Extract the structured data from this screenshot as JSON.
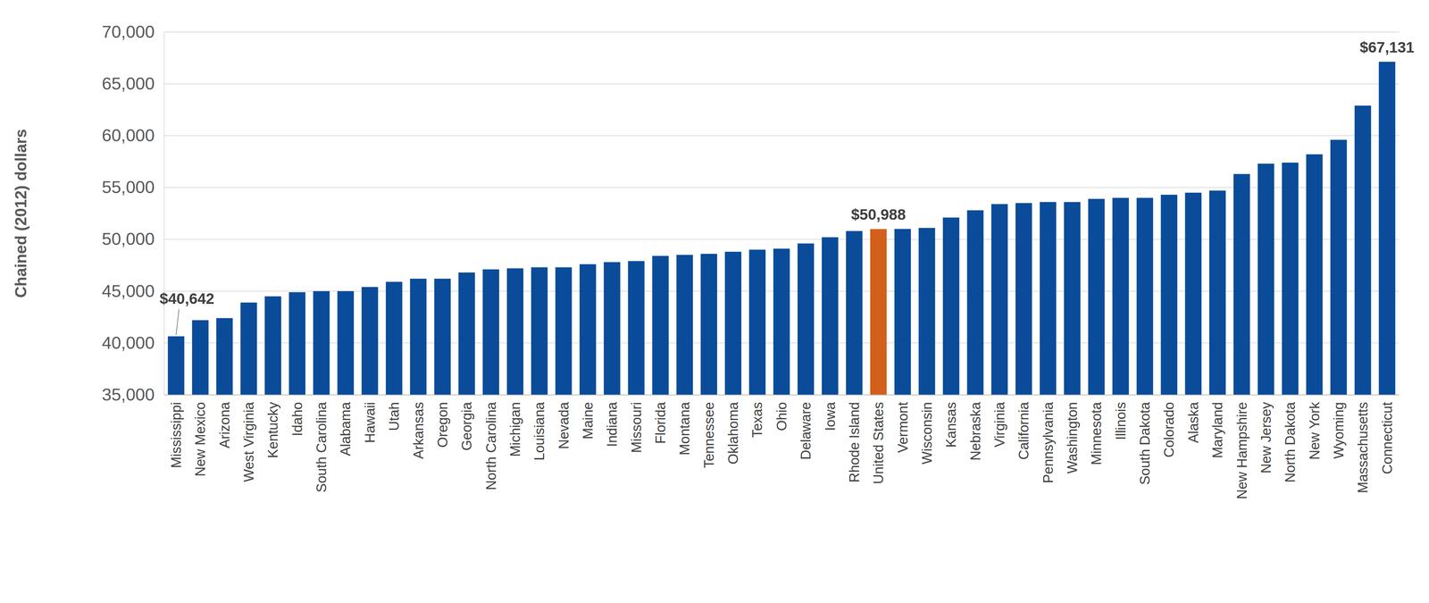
{
  "chart_data": {
    "type": "bar",
    "y_label": "Chained (2012) dollars",
    "categories": [
      "Mississippi",
      "New Mexico",
      "Arizona",
      "West Virginia",
      "Kentucky",
      "Idaho",
      "South Carolina",
      "Alabama",
      "Hawaii",
      "Utah",
      "Arkansas",
      "Oregon",
      "Georgia",
      "North Carolina",
      "Michigan",
      "Louisiana",
      "Nevada",
      "Maine",
      "Indiana",
      "Missouri",
      "Florida",
      "Montana",
      "Tennessee",
      "Oklahoma",
      "Texas",
      "Ohio",
      "Delaware",
      "Iowa",
      "Rhode Island",
      "United States",
      "Vermont",
      "Wisconsin",
      "Kansas",
      "Nebraska",
      "Virginia",
      "California",
      "Pennsylvania",
      "Washington",
      "Minnesota",
      "Illinois",
      "South Dakota",
      "Colorado",
      "Alaska",
      "Maryland",
      "New Hampshire",
      "New Jersey",
      "North Dakota",
      "New York",
      "Wyoming",
      "Massachusetts",
      "Connecticut"
    ],
    "values": [
      40642,
      42200,
      42400,
      43900,
      44500,
      44900,
      45000,
      45000,
      45400,
      45900,
      46200,
      46200,
      46800,
      47100,
      47200,
      47300,
      47300,
      47600,
      47800,
      47900,
      48400,
      48500,
      48600,
      48800,
      49000,
      49100,
      49600,
      50200,
      50800,
      50988,
      51000,
      51100,
      52100,
      52800,
      53400,
      53500,
      53600,
      53600,
      53900,
      54000,
      54000,
      54300,
      54500,
      54700,
      56300,
      57300,
      57400,
      58200,
      59600,
      62900,
      67131
    ],
    "value_labels": [
      "$40,642",
      null,
      null,
      null,
      null,
      null,
      null,
      null,
      null,
      null,
      null,
      null,
      null,
      null,
      null,
      null,
      null,
      null,
      null,
      null,
      null,
      null,
      null,
      null,
      null,
      null,
      null,
      null,
      null,
      "$50,988",
      null,
      null,
      null,
      null,
      null,
      null,
      null,
      null,
      null,
      null,
      null,
      null,
      null,
      null,
      null,
      null,
      null,
      null,
      null,
      null,
      "$67,131"
    ],
    "colors": [
      "#0a4c9a",
      "#0a4c9a",
      "#0a4c9a",
      "#0a4c9a",
      "#0a4c9a",
      "#0a4c9a",
      "#0a4c9a",
      "#0a4c9a",
      "#0a4c9a",
      "#0a4c9a",
      "#0a4c9a",
      "#0a4c9a",
      "#0a4c9a",
      "#0a4c9a",
      "#0a4c9a",
      "#0a4c9a",
      "#0a4c9a",
      "#0a4c9a",
      "#0a4c9a",
      "#0a4c9a",
      "#0a4c9a",
      "#0a4c9a",
      "#0a4c9a",
      "#0a4c9a",
      "#0a4c9a",
      "#0a4c9a",
      "#0a4c9a",
      "#0a4c9a",
      "#0a4c9a",
      "#d2601a",
      "#0a4c9a",
      "#0a4c9a",
      "#0a4c9a",
      "#0a4c9a",
      "#0a4c9a",
      "#0a4c9a",
      "#0a4c9a",
      "#0a4c9a",
      "#0a4c9a",
      "#0a4c9a",
      "#0a4c9a",
      "#0a4c9a",
      "#0a4c9a",
      "#0a4c9a",
      "#0a4c9a",
      "#0a4c9a",
      "#0a4c9a",
      "#0a4c9a",
      "#0a4c9a",
      "#0a4c9a",
      "#0a4c9a"
    ],
    "ylim": [
      35000,
      70000
    ],
    "yticks": [
      {
        "value": 35000,
        "label": "35,000"
      },
      {
        "value": 40000,
        "label": "40,000"
      },
      {
        "value": 45000,
        "label": "45,000"
      },
      {
        "value": 50000,
        "label": "50,000"
      },
      {
        "value": 55000,
        "label": "55,000"
      },
      {
        "value": 60000,
        "label": "60,000"
      },
      {
        "value": 65000,
        "label": "65,000"
      },
      {
        "value": 70000,
        "label": "70,000"
      }
    ],
    "grid": true
  }
}
